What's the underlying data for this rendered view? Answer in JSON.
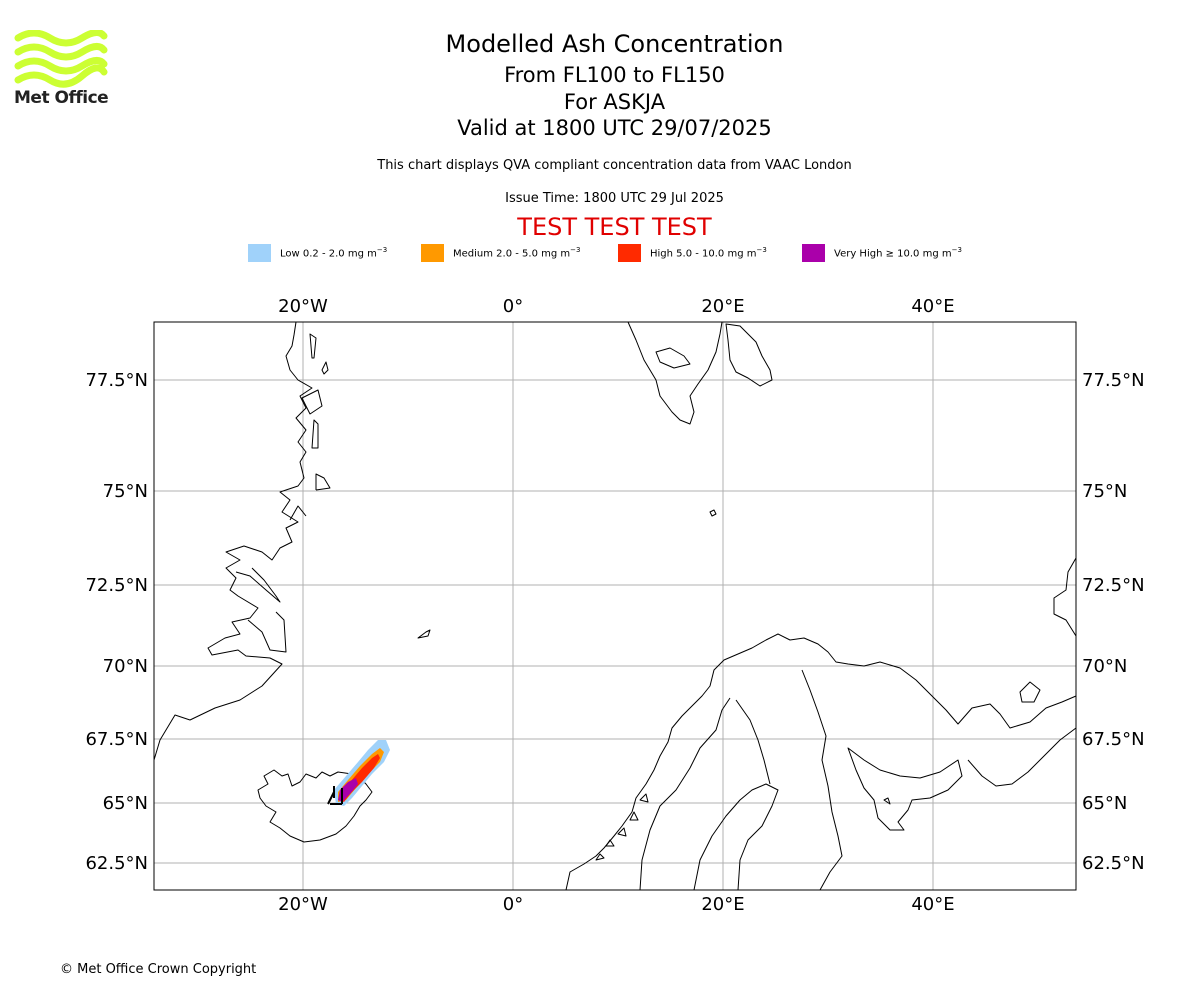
{
  "logo": {
    "text": "Met Office",
    "wave_color": "#ccff33"
  },
  "header": {
    "title": "Modelled Ash Concentration",
    "subtitle_level": "From FL100 to FL150",
    "subtitle_volcano": "For ASKJA",
    "subtitle_valid": "Valid at 1800 UTC 29/07/2025",
    "description": "This chart displays QVA compliant concentration data from VAAC London",
    "issue_time": "Issue Time: 1800 UTC 29 Jul 2025",
    "test_banner": "TEST TEST TEST",
    "test_color": "#e00000"
  },
  "legend": [
    {
      "label": "Low 0.2 - 2.0 mg m",
      "exp": "−3",
      "color": "#a0d2fa"
    },
    {
      "label": "Medium 2.0 - 5.0 mg m",
      "exp": "−3",
      "color": "#ff9900"
    },
    {
      "label": "High 5.0 - 10.0 mg m",
      "exp": "−3",
      "color": "#ff2a00"
    },
    {
      "label": "Very High  ≥  10.0 mg m",
      "exp": "−3",
      "color": "#aa00aa"
    }
  ],
  "map": {
    "lon_ticks": [
      "20°W",
      "0°",
      "20°E",
      "40°E"
    ],
    "lat_ticks": [
      "77.5°N",
      "75°N",
      "72.5°N",
      "70°N",
      "67.5°N",
      "65°N",
      "62.5°N"
    ],
    "gridline_color": "#b0b0b0",
    "coast_color": "#000000"
  },
  "footer": {
    "copyright": "© Met Office Crown Copyright"
  }
}
